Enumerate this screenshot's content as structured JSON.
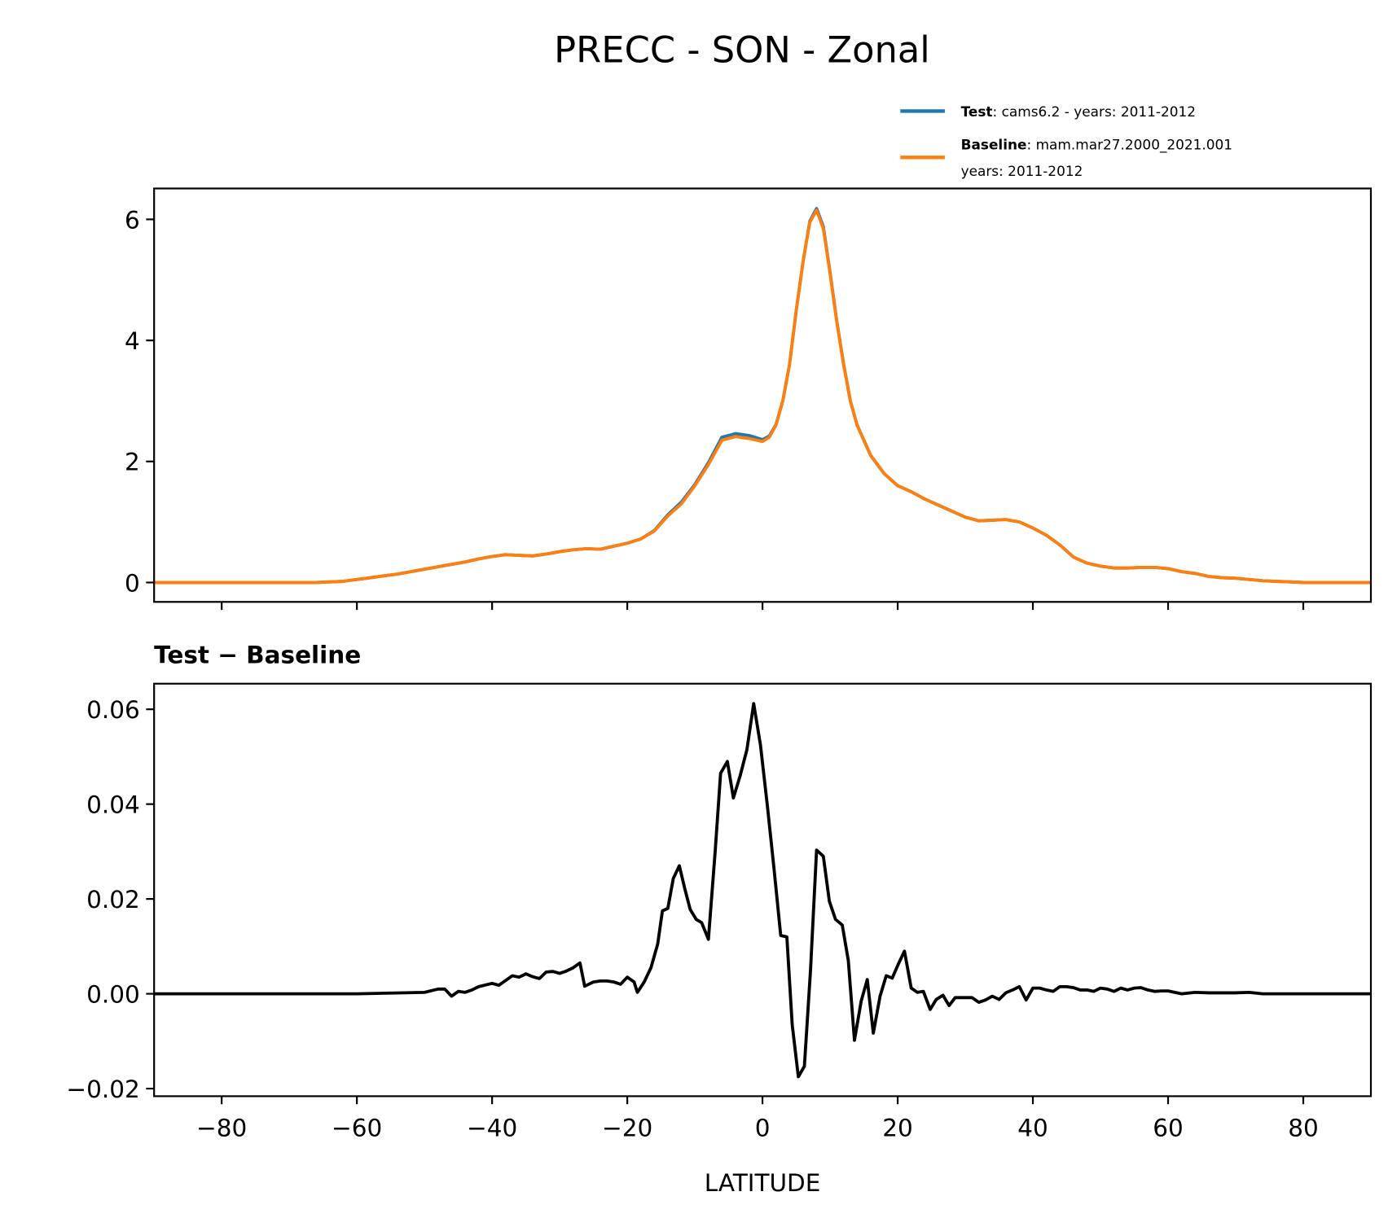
{
  "chart_data": [
    {
      "type": "line",
      "title": "PRECC - SON - Zonal",
      "xlabel": "",
      "ylabel": "",
      "xlim": [
        -90,
        90
      ],
      "ylim": [
        -0.32,
        6.51
      ],
      "yticks": [
        0,
        2,
        4,
        6
      ],
      "ytick_labels": [
        "0",
        "2",
        "4",
        "6"
      ],
      "xticks": [
        -80,
        -60,
        -40,
        -20,
        0,
        20,
        40,
        60,
        80
      ],
      "legend": {
        "placement": "top-right",
        "entries": [
          {
            "bold": "Test",
            "text": ": cams6.2 - years: 2011-2012",
            "color": "#1f77b4"
          },
          {
            "bold": "Baseline",
            "text": ": mam.mar27.2000_2021.001",
            "text2": "years: 2011-2012",
            "color": "#ff7f0e"
          }
        ]
      },
      "x": [
        -90,
        -66,
        -64,
        -62,
        -60,
        -58,
        -56,
        -54,
        -52,
        -50,
        -48,
        -46,
        -44,
        -42,
        -40,
        -38,
        -36,
        -34,
        -32,
        -30,
        -28,
        -26,
        -24,
        -22,
        -20,
        -18,
        -16,
        -14,
        -12,
        -10,
        -8,
        -6,
        -4,
        -2,
        0,
        1,
        2,
        3,
        4,
        5,
        6,
        7,
        8,
        9,
        10,
        11,
        12,
        13,
        14,
        16,
        18,
        20,
        22,
        24,
        26,
        28,
        30,
        32,
        34,
        36,
        38,
        40,
        42,
        44,
        46,
        48,
        50,
        52,
        54,
        56,
        58,
        60,
        62,
        64,
        66,
        68,
        70,
        72,
        74,
        76,
        78,
        80,
        90
      ],
      "series": [
        {
          "name": "Test",
          "color": "#1f77b4",
          "values": [
            0,
            0,
            0.01,
            0.02,
            0.05,
            0.08,
            0.11,
            0.14,
            0.18,
            0.22,
            0.26,
            0.3,
            0.34,
            0.39,
            0.43,
            0.46,
            0.45,
            0.44,
            0.47,
            0.51,
            0.54,
            0.56,
            0.55,
            0.6,
            0.65,
            0.72,
            0.86,
            1.12,
            1.33,
            1.62,
            1.98,
            2.4,
            2.46,
            2.43,
            2.36,
            2.42,
            2.61,
            3.0,
            3.6,
            4.5,
            5.3,
            5.97,
            6.18,
            5.88,
            5.12,
            4.31,
            3.61,
            3.0,
            2.6,
            2.1,
            1.8,
            1.6,
            1.5,
            1.38,
            1.28,
            1.18,
            1.08,
            1.02,
            1.03,
            1.04,
            1.0,
            0.9,
            0.78,
            0.62,
            0.42,
            0.32,
            0.27,
            0.24,
            0.24,
            0.25,
            0.25,
            0.23,
            0.18,
            0.15,
            0.1,
            0.08,
            0.07,
            0.05,
            0.03,
            0.02,
            0.01,
            0,
            0
          ]
        },
        {
          "name": "Baseline",
          "color": "#ff7f0e",
          "values": [
            0,
            0,
            0.01,
            0.02,
            0.05,
            0.08,
            0.11,
            0.14,
            0.18,
            0.22,
            0.26,
            0.3,
            0.34,
            0.39,
            0.43,
            0.46,
            0.45,
            0.44,
            0.47,
            0.51,
            0.54,
            0.56,
            0.55,
            0.6,
            0.65,
            0.72,
            0.85,
            1.1,
            1.3,
            1.6,
            1.95,
            2.35,
            2.41,
            2.38,
            2.33,
            2.4,
            2.6,
            3.0,
            3.6,
            4.5,
            5.3,
            5.95,
            6.15,
            5.85,
            5.1,
            4.3,
            3.6,
            3.0,
            2.6,
            2.1,
            1.8,
            1.6,
            1.5,
            1.38,
            1.28,
            1.18,
            1.08,
            1.02,
            1.03,
            1.04,
            1.0,
            0.9,
            0.78,
            0.62,
            0.42,
            0.32,
            0.27,
            0.24,
            0.24,
            0.25,
            0.25,
            0.23,
            0.18,
            0.15,
            0.1,
            0.08,
            0.07,
            0.05,
            0.03,
            0.02,
            0.01,
            0,
            0
          ]
        }
      ]
    },
    {
      "type": "line",
      "title": "Test − Baseline",
      "xlabel": "LATITUDE",
      "ylabel": "",
      "xlim": [
        -90,
        90
      ],
      "ylim": [
        -0.0216,
        0.0654
      ],
      "yticks": [
        -0.02,
        0,
        0.02,
        0.04,
        0.06
      ],
      "ytick_labels": [
        "−0.02",
        "0.00",
        "0.02",
        "0.04",
        "0.06"
      ],
      "xticks": [
        -80,
        -60,
        -40,
        -20,
        0,
        20,
        40,
        60,
        80
      ],
      "xtick_labels": [
        "−80",
        "−60",
        "−40",
        "−20",
        "0",
        "20",
        "40",
        "60",
        "80"
      ],
      "series": [
        {
          "name": "Test - Baseline",
          "color": "#000000",
          "x": [
            -90,
            -60,
            -50,
            -48,
            -47,
            -46,
            -45,
            -44,
            -43,
            -42,
            -40,
            -39,
            -38,
            -37,
            -36,
            -35,
            -34,
            -33,
            -32,
            -31,
            -30,
            -29,
            -28,
            -27,
            -26.3,
            -25,
            -24,
            -23,
            -22,
            -21,
            -20,
            -19,
            -18.5,
            -17.5,
            -16.5,
            -15.5,
            -14.8,
            -14,
            -13.2,
            -12.3,
            -11.5,
            -10.7,
            -9.8,
            -9,
            -8,
            -7,
            -6.2,
            -5.2,
            -4.3,
            -3.3,
            -2.3,
            -1.3,
            -0.3,
            0.7,
            1.7,
            2.7,
            3.6,
            4.4,
            5.3,
            6.2,
            7.1,
            8,
            9,
            9.9,
            10.8,
            11.8,
            12.7,
            13.6,
            14.6,
            15.5,
            16.4,
            17.4,
            18.3,
            19.2,
            20.1,
            21,
            22,
            22.9,
            23.8,
            24.8,
            25.7,
            26.7,
            27.6,
            28.5,
            30,
            31,
            32,
            33,
            34,
            35,
            36,
            37,
            38,
            39,
            40,
            41,
            42,
            43,
            44,
            45,
            46,
            47,
            48,
            49,
            50,
            51,
            52,
            53,
            54,
            55,
            56,
            57,
            58,
            59,
            60,
            62,
            64,
            66,
            70,
            72,
            74,
            90
          ],
          "values": [
            0,
            0,
            0.0003,
            0.001,
            0.001,
            -0.0005,
            0.0005,
            0.0003,
            0.0008,
            0.0015,
            0.0022,
            0.0018,
            0.0028,
            0.0038,
            0.0035,
            0.0042,
            0.0036,
            0.0032,
            0.0046,
            0.0047,
            0.0043,
            0.0048,
            0.0055,
            0.0065,
            0.0016,
            0.0025,
            0.0027,
            0.0027,
            0.0025,
            0.002,
            0.0035,
            0.0025,
            0.0003,
            0.0025,
            0.0055,
            0.0105,
            0.0175,
            0.018,
            0.0243,
            0.027,
            0.0222,
            0.0178,
            0.0157,
            0.015,
            0.0115,
            0.03,
            0.0465,
            0.049,
            0.0413,
            0.046,
            0.0515,
            0.0612,
            0.0525,
            0.04,
            0.0265,
            0.0123,
            0.012,
            -0.0065,
            -0.0175,
            -0.0153,
            0.005,
            0.0303,
            0.029,
            0.0195,
            0.0157,
            0.0145,
            0.007,
            -0.0098,
            -0.0015,
            0.003,
            -0.0083,
            -0.0005,
            0.0038,
            0.0033,
            0.0063,
            0.009,
            0.0012,
            0.0003,
            0.0005,
            -0.0033,
            -0.0012,
            -0.0003,
            -0.0025,
            -0.0008,
            -0.0008,
            -0.0008,
            -0.0018,
            -0.0013,
            -0.0005,
            -0.0012,
            0.0002,
            0.0008,
            0.0015,
            -0.0013,
            0.0012,
            0.0012,
            0.0008,
            0.0005,
            0.0015,
            0.0015,
            0.0013,
            0.0008,
            0.0008,
            0.0005,
            0.0012,
            0.001,
            0.0005,
            0.0012,
            0.0008,
            0.0012,
            0.0013,
            0.0008,
            0.0005,
            0.0006,
            0.0006,
            0,
            0.0003,
            0.0002,
            0.0002,
            0.0003,
            0,
            0
          ]
        }
      ]
    }
  ]
}
